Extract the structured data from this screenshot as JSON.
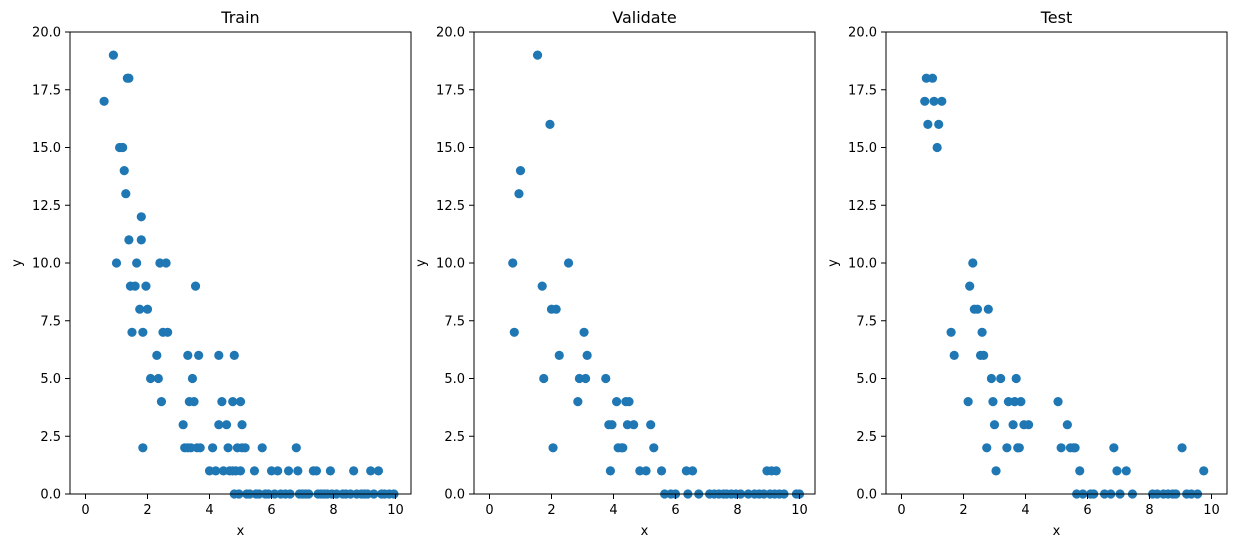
{
  "chart_data": [
    {
      "type": "scatter",
      "title": "Train",
      "xlabel": "x",
      "ylabel": "y",
      "xlim": [
        -0.5,
        10.5
      ],
      "ylim": [
        0,
        20
      ],
      "xticks": [
        0,
        2,
        4,
        6,
        8,
        10
      ],
      "yticks": [
        0.0,
        2.5,
        5.0,
        7.5,
        10.0,
        12.5,
        15.0,
        17.5,
        20.0
      ],
      "grid": false,
      "color": "#1f77b4",
      "points": [
        [
          0.6,
          17
        ],
        [
          0.9,
          19
        ],
        [
          1.0,
          10
        ],
        [
          1.1,
          15
        ],
        [
          1.2,
          15
        ],
        [
          1.25,
          14
        ],
        [
          1.3,
          13
        ],
        [
          1.35,
          18
        ],
        [
          1.4,
          18
        ],
        [
          1.4,
          11
        ],
        [
          1.45,
          9
        ],
        [
          1.5,
          7
        ],
        [
          1.6,
          9
        ],
        [
          1.65,
          10
        ],
        [
          1.75,
          8
        ],
        [
          1.8,
          11
        ],
        [
          1.8,
          12
        ],
        [
          1.85,
          7
        ],
        [
          1.85,
          2
        ],
        [
          1.95,
          9
        ],
        [
          2.0,
          8
        ],
        [
          2.1,
          5
        ],
        [
          2.3,
          6
        ],
        [
          2.35,
          5
        ],
        [
          2.4,
          10
        ],
        [
          2.45,
          4
        ],
        [
          2.5,
          7
        ],
        [
          2.6,
          10
        ],
        [
          2.65,
          7
        ],
        [
          3.15,
          3
        ],
        [
          3.2,
          2
        ],
        [
          3.3,
          6
        ],
        [
          3.3,
          2
        ],
        [
          3.35,
          4
        ],
        [
          3.4,
          2
        ],
        [
          3.45,
          5
        ],
        [
          3.5,
          4
        ],
        [
          3.55,
          9
        ],
        [
          3.6,
          2
        ],
        [
          3.65,
          6
        ],
        [
          3.7,
          2
        ],
        [
          4.0,
          1
        ],
        [
          4.1,
          2
        ],
        [
          4.2,
          1
        ],
        [
          4.3,
          3
        ],
        [
          4.3,
          6
        ],
        [
          4.4,
          4
        ],
        [
          4.45,
          1
        ],
        [
          4.55,
          3
        ],
        [
          4.6,
          2
        ],
        [
          4.65,
          1
        ],
        [
          4.75,
          4
        ],
        [
          4.75,
          1
        ],
        [
          4.8,
          6
        ],
        [
          4.8,
          0
        ],
        [
          4.85,
          1
        ],
        [
          4.9,
          2
        ],
        [
          4.95,
          0
        ],
        [
          5.0,
          4
        ],
        [
          5.0,
          1
        ],
        [
          5.05,
          2
        ],
        [
          5.05,
          3
        ],
        [
          5.15,
          2
        ],
        [
          5.2,
          0
        ],
        [
          5.3,
          0
        ],
        [
          5.45,
          1
        ],
        [
          5.5,
          0
        ],
        [
          5.6,
          0
        ],
        [
          5.7,
          2
        ],
        [
          5.8,
          0
        ],
        [
          5.9,
          0
        ],
        [
          6.0,
          1
        ],
        [
          6.1,
          0
        ],
        [
          6.2,
          1
        ],
        [
          6.3,
          0
        ],
        [
          6.45,
          0
        ],
        [
          6.55,
          1
        ],
        [
          6.6,
          0
        ],
        [
          6.8,
          2
        ],
        [
          6.85,
          1
        ],
        [
          6.9,
          0
        ],
        [
          7.0,
          0
        ],
        [
          7.1,
          0
        ],
        [
          7.2,
          0
        ],
        [
          7.35,
          1
        ],
        [
          7.45,
          1
        ],
        [
          7.5,
          0
        ],
        [
          7.6,
          0
        ],
        [
          7.7,
          0
        ],
        [
          7.8,
          0
        ],
        [
          7.9,
          1
        ],
        [
          7.95,
          0
        ],
        [
          8.1,
          0
        ],
        [
          8.3,
          0
        ],
        [
          8.4,
          0
        ],
        [
          8.55,
          0
        ],
        [
          8.65,
          1
        ],
        [
          8.75,
          0
        ],
        [
          8.9,
          0
        ],
        [
          9.0,
          0
        ],
        [
          9.1,
          0
        ],
        [
          9.2,
          1
        ],
        [
          9.3,
          0
        ],
        [
          9.45,
          1
        ],
        [
          9.55,
          0
        ],
        [
          9.65,
          0
        ],
        [
          9.8,
          0
        ],
        [
          9.95,
          0
        ]
      ]
    },
    {
      "type": "scatter",
      "title": "Validate",
      "xlabel": "x",
      "ylabel": "y",
      "xlim": [
        -0.5,
        10.5
      ],
      "ylim": [
        0,
        20
      ],
      "xticks": [
        0,
        2,
        4,
        6,
        8,
        10
      ],
      "yticks": [
        0.0,
        2.5,
        5.0,
        7.5,
        10.0,
        12.5,
        15.0,
        17.5,
        20.0
      ],
      "grid": false,
      "color": "#1f77b4",
      "points": [
        [
          0.75,
          10
        ],
        [
          0.8,
          7
        ],
        [
          0.95,
          13
        ],
        [
          1.0,
          14
        ],
        [
          1.55,
          19
        ],
        [
          1.7,
          9
        ],
        [
          1.75,
          5
        ],
        [
          1.95,
          16
        ],
        [
          2.0,
          8
        ],
        [
          2.05,
          2
        ],
        [
          2.15,
          8
        ],
        [
          2.25,
          6
        ],
        [
          2.55,
          10
        ],
        [
          2.85,
          4
        ],
        [
          2.9,
          5
        ],
        [
          3.05,
          7
        ],
        [
          3.1,
          5
        ],
        [
          3.15,
          6
        ],
        [
          3.75,
          5
        ],
        [
          3.85,
          3
        ],
        [
          3.9,
          1
        ],
        [
          3.95,
          3
        ],
        [
          4.1,
          4
        ],
        [
          4.15,
          2
        ],
        [
          4.25,
          2
        ],
        [
          4.3,
          2
        ],
        [
          4.4,
          4
        ],
        [
          4.45,
          3
        ],
        [
          4.5,
          4
        ],
        [
          4.65,
          3
        ],
        [
          4.85,
          1
        ],
        [
          5.05,
          1
        ],
        [
          5.2,
          3
        ],
        [
          5.3,
          2
        ],
        [
          5.55,
          1
        ],
        [
          5.65,
          0
        ],
        [
          5.85,
          0
        ],
        [
          6.0,
          0
        ],
        [
          6.35,
          1
        ],
        [
          6.4,
          0
        ],
        [
          6.55,
          1
        ],
        [
          6.75,
          0
        ],
        [
          7.1,
          0
        ],
        [
          7.25,
          0
        ],
        [
          7.4,
          0
        ],
        [
          7.55,
          0
        ],
        [
          7.65,
          0
        ],
        [
          7.8,
          0
        ],
        [
          7.95,
          0
        ],
        [
          8.1,
          0
        ],
        [
          8.35,
          0
        ],
        [
          8.55,
          0
        ],
        [
          8.7,
          0
        ],
        [
          8.85,
          0
        ],
        [
          8.95,
          1
        ],
        [
          9.05,
          0
        ],
        [
          9.1,
          1
        ],
        [
          9.2,
          0
        ],
        [
          9.25,
          1
        ],
        [
          9.35,
          0
        ],
        [
          9.5,
          0
        ],
        [
          9.9,
          0
        ],
        [
          10.0,
          0
        ]
      ]
    },
    {
      "type": "scatter",
      "title": "Test",
      "xlabel": "x",
      "ylabel": "y",
      "xlim": [
        -0.5,
        10.5
      ],
      "ylim": [
        0,
        20
      ],
      "xticks": [
        0,
        2,
        4,
        6,
        8,
        10
      ],
      "yticks": [
        0.0,
        2.5,
        5.0,
        7.5,
        10.0,
        12.5,
        15.0,
        17.5,
        20.0
      ],
      "grid": false,
      "color": "#1f77b4",
      "points": [
        [
          0.75,
          17
        ],
        [
          0.8,
          18
        ],
        [
          0.85,
          16
        ],
        [
          1.0,
          18
        ],
        [
          1.05,
          17
        ],
        [
          1.15,
          15
        ],
        [
          1.2,
          16
        ],
        [
          1.3,
          17
        ],
        [
          1.6,
          7
        ],
        [
          1.7,
          6
        ],
        [
          2.15,
          4
        ],
        [
          2.2,
          9
        ],
        [
          2.3,
          10
        ],
        [
          2.35,
          8
        ],
        [
          2.45,
          8
        ],
        [
          2.55,
          6
        ],
        [
          2.6,
          7
        ],
        [
          2.65,
          6
        ],
        [
          2.75,
          2
        ],
        [
          2.8,
          8
        ],
        [
          2.9,
          5
        ],
        [
          2.95,
          4
        ],
        [
          3.0,
          3
        ],
        [
          3.05,
          1
        ],
        [
          3.2,
          5
        ],
        [
          3.4,
          2
        ],
        [
          3.45,
          4
        ],
        [
          3.6,
          3
        ],
        [
          3.65,
          4
        ],
        [
          3.7,
          5
        ],
        [
          3.75,
          2
        ],
        [
          3.8,
          2
        ],
        [
          3.85,
          4
        ],
        [
          3.95,
          3
        ],
        [
          4.1,
          3
        ],
        [
          5.05,
          4
        ],
        [
          5.15,
          2
        ],
        [
          5.35,
          3
        ],
        [
          5.45,
          2
        ],
        [
          5.55,
          2
        ],
        [
          5.6,
          2
        ],
        [
          5.65,
          0
        ],
        [
          5.75,
          1
        ],
        [
          5.85,
          0
        ],
        [
          6.1,
          0
        ],
        [
          6.2,
          0
        ],
        [
          6.55,
          0
        ],
        [
          6.75,
          0
        ],
        [
          6.85,
          2
        ],
        [
          6.95,
          1
        ],
        [
          7.05,
          0
        ],
        [
          7.25,
          1
        ],
        [
          7.45,
          0
        ],
        [
          8.1,
          0
        ],
        [
          8.25,
          0
        ],
        [
          8.45,
          0
        ],
        [
          8.6,
          0
        ],
        [
          8.75,
          0
        ],
        [
          8.85,
          0
        ],
        [
          9.05,
          2
        ],
        [
          9.2,
          0
        ],
        [
          9.35,
          0
        ],
        [
          9.55,
          0
        ],
        [
          9.75,
          1
        ]
      ]
    }
  ]
}
